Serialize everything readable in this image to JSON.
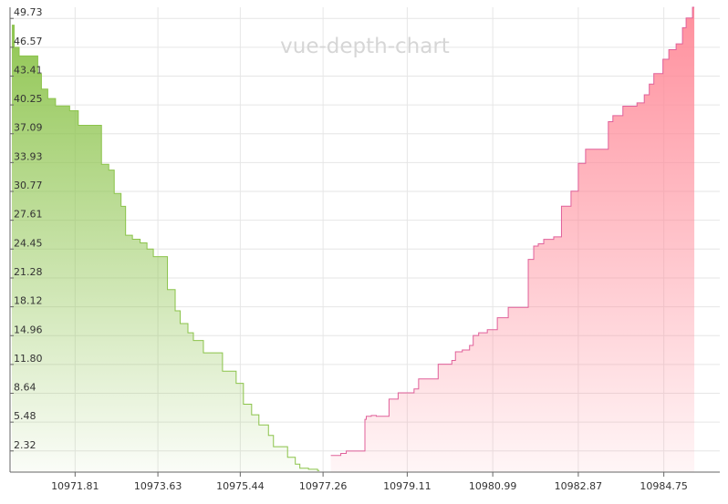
{
  "chart_data": {
    "type": "area",
    "title": "vue-depth-chart",
    "xlabel": "",
    "ylabel": "",
    "grid": true,
    "xlim": [
      10970.38,
      10985.98
    ],
    "ylim": [
      0,
      50.95
    ],
    "x_ticks": [
      "10971.81",
      "10973.63",
      "10975.44",
      "10977.26",
      "10979.11",
      "10980.99",
      "10982.87",
      "10984.75"
    ],
    "y_ticks": [
      "2.32",
      "5.48",
      "8.64",
      "11.80",
      "14.96",
      "18.12",
      "21.28",
      "24.45",
      "27.61",
      "30.77",
      "33.93",
      "37.09",
      "40.25",
      "43.41",
      "46.57",
      "49.73"
    ],
    "series": [
      {
        "side": "bids",
        "color": "#8bc34a",
        "x": [
          10970.42,
          10970.47,
          10970.58,
          10970.99,
          10971.07,
          10971.21,
          10971.38,
          10971.69,
          10971.88,
          10972.39,
          10972.55,
          10972.67,
          10972.82,
          10972.92,
          10973.07,
          10973.24,
          10973.39,
          10973.53,
          10973.84,
          10974.01,
          10974.12,
          10974.29,
          10974.41,
          10974.63,
          10975.05,
          10975.35,
          10975.51,
          10975.69,
          10975.85,
          10976.06,
          10976.17,
          10976.48,
          10976.65,
          10976.75,
          10976.94,
          10977.14
        ],
        "y": [
          48.99,
          46.57,
          45.62,
          43.64,
          41.98,
          40.95,
          40.14,
          39.61,
          38.01,
          33.74,
          33.11,
          30.54,
          29.13,
          25.96,
          25.52,
          25.13,
          24.45,
          23.61,
          20.01,
          17.68,
          16.29,
          15.27,
          14.42,
          13.08,
          11.06,
          9.73,
          7.44,
          6.28,
          5.17,
          4.02,
          2.78,
          1.62,
          0.87,
          0.42,
          0.31,
          0.18
        ]
      },
      {
        "side": "asks",
        "color": "#f48fb1",
        "x": [
          10977.43,
          10977.65,
          10977.77,
          10978.18,
          10978.21,
          10978.32,
          10978.43,
          10978.71,
          10978.91,
          10979.26,
          10979.36,
          10979.79,
          10980.09,
          10980.17,
          10980.32,
          10980.48,
          10980.56,
          10980.68,
          10980.87,
          10981.09,
          10981.33,
          10981.77,
          10981.89,
          10981.99,
          10982.11,
          10982.33,
          10982.5,
          10982.71,
          10982.87,
          10983.03,
          10983.53,
          10983.63,
          10983.85,
          10984.16,
          10984.32,
          10984.43,
          10984.53,
          10984.73,
          10984.86,
          10985.02,
          10985.16,
          10985.24,
          10985.38
        ],
        "y": [
          1.82,
          2.05,
          2.31,
          5.78,
          6.12,
          6.21,
          6.12,
          8.01,
          8.69,
          9.11,
          10.22,
          11.82,
          12.24,
          13.19,
          13.39,
          13.88,
          14.97,
          15.27,
          15.61,
          16.92,
          18.06,
          23.32,
          24.77,
          25.02,
          25.51,
          25.79,
          29.14,
          30.79,
          33.84,
          35.39,
          38.41,
          39.08,
          40.11,
          40.47,
          41.36,
          42.53,
          43.68,
          45.26,
          46.31,
          46.94,
          48.72,
          49.77,
          50.95
        ]
      }
    ]
  }
}
